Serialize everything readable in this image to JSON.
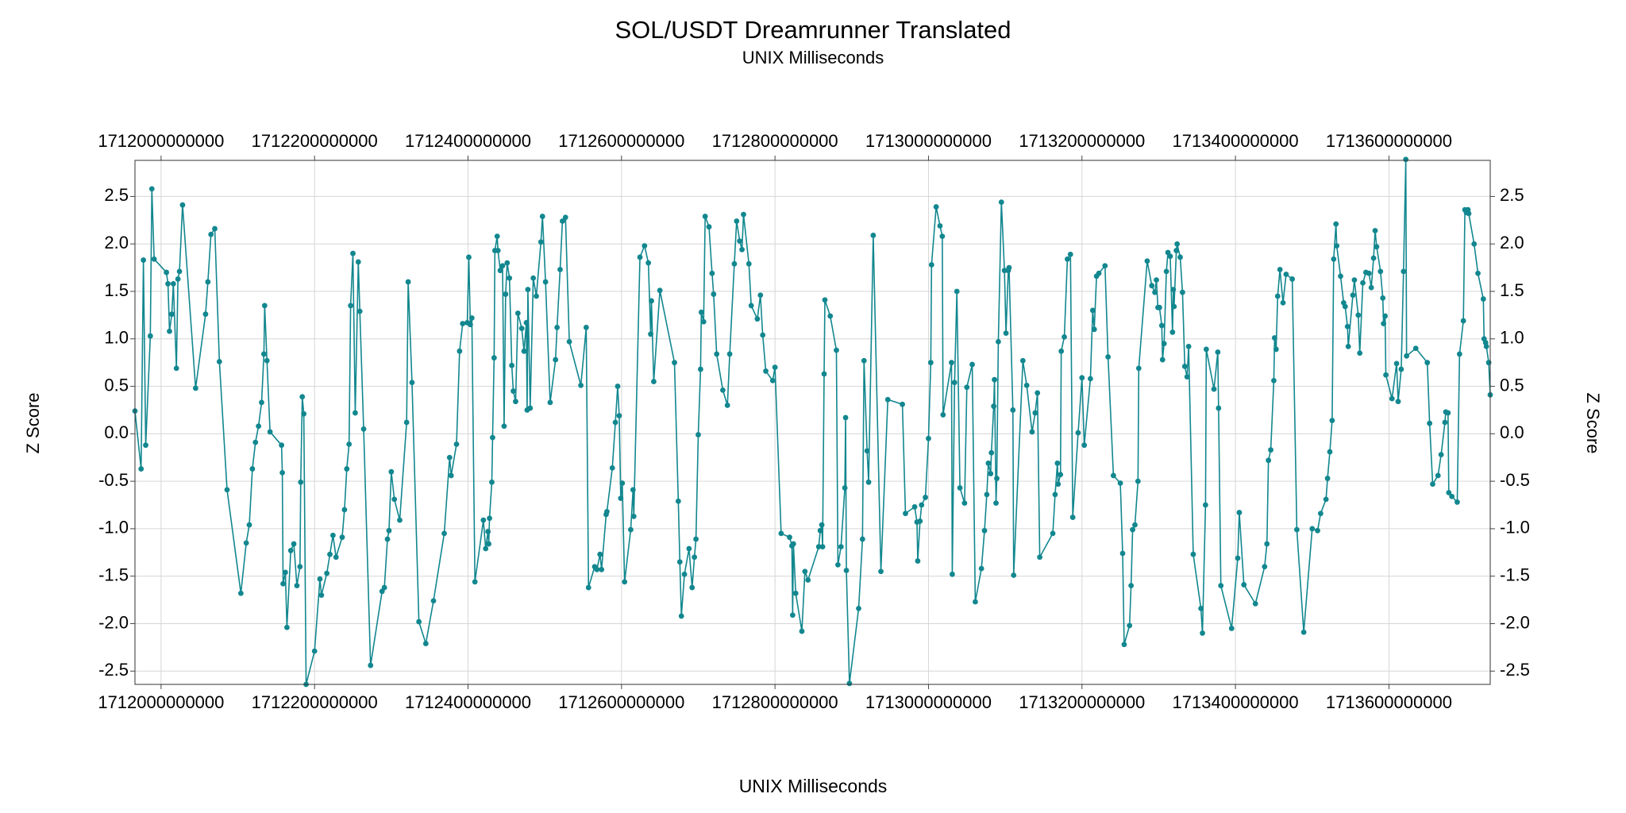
{
  "chart_data": {
    "type": "line",
    "title": "SOL/USDT Dreamrunner Translated",
    "subtitle": "UNIX Milliseconds",
    "xlabel": "UNIX Milliseconds",
    "ylabel": "Z Score",
    "color": "#12878f",
    "grid": true,
    "xlim": [
      1711966000000,
      1713732000000
    ],
    "ylim": [
      -2.64,
      2.88
    ],
    "xticks": [
      1712000000000,
      1712200000000,
      1712400000000,
      1712600000000,
      1712800000000,
      1713000000000,
      1713200000000,
      1713400000000,
      1713600000000
    ],
    "yticks": [
      -2.5,
      {
        "value": -2,
        "label": "-2.0"
      },
      -1.5,
      {
        "value": -1,
        "label": "-1.0"
      },
      -0.5,
      {
        "value": 0,
        "label": "0.0"
      },
      0.5,
      {
        "value": 1,
        "label": "1.0"
      },
      1.5,
      {
        "value": 2,
        "label": "2.0"
      },
      2.5
    ],
    "x": [
      1711966000000,
      1711974000000,
      1711977000000,
      1711980000000,
      1711986000000,
      1711988000000,
      1711991000000,
      1712007000000,
      1712009000000,
      1712011000000,
      1712014000000,
      1712016000000,
      1712020000000,
      1712022000000,
      1712024000000,
      1712028000000,
      1712045000000,
      1712058000000,
      1712061000000,
      1712065000000,
      1712070000000,
      1712076000000,
      1712086000000,
      1712104000000,
      1712111000000,
      1712115000000,
      1712119000000,
      1712123000000,
      1712127000000,
      1712131000000,
      1712134000000,
      1712135000000,
      1712138000000,
      1712142000000,
      1712157000000,
      1712158000000,
      1712159000000,
      1712162000000,
      1712164000000,
      1712169000000,
      1712173000000,
      1712177000000,
      1712181000000,
      1712182000000,
      1712184000000,
      1712186000000,
      1712189000000,
      1712200000000,
      1712207000000,
      1712209000000,
      1712216000000,
      1712220000000,
      1712224000000,
      1712228000000,
      1712236000000,
      1712239000000,
      1712242000000,
      1712245000000,
      1712247000000,
      1712250000000,
      1712253000000,
      1712257000000,
      1712259000000,
      1712264000000,
      1712273000000,
      1712288000000,
      1712291000000,
      1712295000000,
      1712297000000,
      1712300000000,
      1712304000000,
      1712311000000,
      1712320000000,
      1712322000000,
      1712327000000,
      1712336000000,
      1712345000000,
      1712355000000,
      1712369000000,
      1712376000000,
      1712378000000,
      1712385000000,
      1712389000000,
      1712393000000,
      1712399000000,
      1712401000000,
      1712403000000,
      1712405000000,
      1712409000000,
      1712420000000,
      1712423000000,
      1712426000000,
      1712427000000,
      1712428000000,
      1712431000000,
      1712432000000,
      1712434000000,
      1712435000000,
      1712438000000,
      1712439000000,
      1712442000000,
      1712445000000,
      1712447000000,
      1712449000000,
      1712451000000,
      1712454000000,
      1712457000000,
      1712459000000,
      1712462000000,
      1712465000000,
      1712470000000,
      1712473000000,
      1712476000000,
      1712477000000,
      1712478000000,
      1712481000000,
      1712485000000,
      1712489000000,
      1712495000000,
      1712497000000,
      1712501000000,
      1712507000000,
      1712514000000,
      1712516000000,
      1712520000000,
      1712523000000,
      1712527000000,
      1712532000000,
      1712547000000,
      1712554000000,
      1712557000000,
      1712565000000,
      1712568000000,
      1712572000000,
      1712574000000,
      1712580000000,
      1712581000000,
      1712588000000,
      1712592000000,
      1712595000000,
      1712597000000,
      1712599000000,
      1712601000000,
      1712604000000,
      1712612000000,
      1712615000000,
      1712616000000,
      1712624000000,
      1712630000000,
      1712635000000,
      1712638000000,
      1712639000000,
      1712642000000,
      1712650000000,
      1712669000000,
      1712674000000,
      1712676000000,
      1712678000000,
      1712682000000,
      1712688000000,
      1712692000000,
      1712695000000,
      1712697000000,
      1712700000000,
      1712703000000,
      1712704000000,
      1712707000000,
      1712709000000,
      1712714000000,
      1712718000000,
      1712720000000,
      1712724000000,
      1712732000000,
      1712738000000,
      1712741000000,
      1712747000000,
      1712750000000,
      1712754000000,
      1712757000000,
      1712759000000,
      1712766000000,
      1712769000000,
      1712777000000,
      1712781000000,
      1712784000000,
      1712788000000,
      1712797000000,
      1712800000000,
      1712808000000,
      1712819000000,
      1712822000000,
      1712823000000,
      1712824000000,
      1712827000000,
      1712835000000,
      1712839000000,
      1712843000000,
      1712857000000,
      1712859000000,
      1712861000000,
      1712862000000,
      1712864000000,
      1712865000000,
      1712872000000,
      1712880000000,
      1712882000000,
      1712886000000,
      1712891000000,
      1712892000000,
      1712893000000,
      1712897000000,
      1712909000000,
      1712914000000,
      1712916000000,
      1712920000000,
      1712922000000,
      1712928000000,
      1712938000000,
      1712947000000,
      1712966000000,
      1712970000000,
      1712982000000,
      1712985000000,
      1712986000000,
      1712989000000,
      1712991000000,
      1712996000000,
      1713000000000,
      1713003000000,
      1713004000000,
      1713010000000,
      1713015000000,
      1713018000000,
      1713019000000,
      1713030000000,
      1713031000000,
      1713034000000,
      1713037000000,
      1713041000000,
      1713047000000,
      1713050000000,
      1713057000000,
      1713061000000,
      1713069000000,
      1713073000000,
      1713076000000,
      1713078000000,
      1713081000000,
      1713082000000,
      1713085000000,
      1713086000000,
      1713088000000,
      1713089000000,
      1713091000000,
      1713095000000,
      1713099000000,
      1713101000000,
      1713104000000,
      1713105000000,
      1713110000000,
      1713111000000,
      1713123000000,
      1713128000000,
      1713135000000,
      1713139000000,
      1713142000000,
      1713145000000,
      1713162000000,
      1713165000000,
      1713168000000,
      1713169000000,
      1713172000000,
      1713173000000,
      1713177000000,
      1713181000000,
      1713185000000,
      1713188000000,
      1713195000000,
      1713200000000,
      1713203000000,
      1713211000000,
      1713214000000,
      1713216000000,
      1713219000000,
      1713222000000,
      1713230000000,
      1713234000000,
      1713241000000,
      1713250000000,
      1713253000000,
      1713255000000,
      1713262000000,
      1713264000000,
      1713266000000,
      1713269000000,
      1713273000000,
      1713274000000,
      1713285000000,
      1713291000000,
      1713295000000,
      1713297000000,
      1713299000000,
      1713301000000,
      1713304000000,
      1713305000000,
      1713307000000,
      1713310000000,
      1713312000000,
      1713315000000,
      1713318000000,
      1713319000000,
      1713320000000,
      1713323000000,
      1713324000000,
      1713328000000,
      1713331000000,
      1713334000000,
      1713337000000,
      1713339000000,
      1713345000000,
      1713355000000,
      1713357000000,
      1713361000000,
      1713362000000,
      1713372000000,
      1713377000000,
      1713378000000,
      1713381000000,
      1713395000000,
      1713403000000,
      1713405000000,
      1713411000000,
      1713426000000,
      1713438000000,
      1713441000000,
      1713443000000,
      1713446000000,
      1713450000000,
      1713451000000,
      1713453000000,
      1713455000000,
      1713458000000,
      1713462000000,
      1713466000000,
      1713474000000,
      1713480000000,
      1713489000000,
      1713500000000,
      1713507000000,
      1713511000000,
      1713518000000,
      1713520000000,
      1713523000000,
      1713526000000,
      1713528000000,
      1713531000000,
      1713532000000,
      1713537000000,
      1713541000000,
      1713543000000,
      1713546000000,
      1713547000000,
      1713553000000,
      1713555000000,
      1713560000000,
      1713562000000,
      1713566000000,
      1713570000000,
      1713574000000,
      1713577000000,
      1713580000000,
      1713582000000,
      1713584000000,
      1713589000000,
      1713592000000,
      1713593000000,
      1713595000000,
      1713596000000,
      1713604000000,
      1713610000000,
      1713612000000,
      1713616000000,
      1713619000000,
      1713622000000,
      1713623000000,
      1713635000000,
      1713650000000,
      1713653000000,
      1713657000000,
      1713664000000,
      1713668000000,
      1713673000000,
      1713674000000,
      1713677000000,
      1713678000000,
      1713682000000,
      1713689000000,
      1713692000000,
      1713697000000,
      1713699000000,
      1713701000000,
      1713703000000,
      1713704000000,
      1713711000000,
      1713716000000,
      1713723000000,
      1713724000000,
      1713726000000,
      1713727000000,
      1713730000000,
      1713732000000
    ],
    "values": [
      0.24,
      -0.37,
      1.83,
      -0.12,
      1.03,
      2.58,
      1.84,
      1.7,
      1.58,
      1.08,
      1.26,
      1.58,
      0.69,
      1.63,
      1.71,
      2.41,
      0.48,
      1.26,
      1.6,
      2.1,
      2.16,
      0.76,
      -0.59,
      -1.68,
      -1.15,
      -0.96,
      -0.37,
      -0.09,
      0.08,
      0.33,
      0.84,
      1.35,
      0.77,
      0.02,
      -0.12,
      -0.41,
      -1.58,
      -1.46,
      -2.04,
      -1.23,
      -1.16,
      -1.6,
      -1.4,
      -0.51,
      0.39,
      0.21,
      -2.64,
      -2.29,
      -1.53,
      -1.7,
      -1.47,
      -1.27,
      -1.07,
      -1.3,
      -1.09,
      -0.8,
      -0.37,
      -0.11,
      1.35,
      1.9,
      0.22,
      1.81,
      1.29,
      0.05,
      -2.44,
      -1.66,
      -1.62,
      -1.11,
      -1.02,
      -0.4,
      -0.69,
      -0.91,
      0.12,
      1.6,
      0.54,
      -1.98,
      -2.21,
      -1.76,
      -1.05,
      -0.25,
      -0.44,
      -0.11,
      0.87,
      1.16,
      1.17,
      1.86,
      1.15,
      1.22,
      -1.56,
      -0.91,
      -1.21,
      -1.03,
      -1.16,
      -0.89,
      -0.51,
      -0.04,
      0.8,
      1.93,
      2.08,
      1.93,
      1.72,
      1.77,
      0.08,
      1.47,
      1.8,
      1.64,
      0.72,
      0.45,
      0.34,
      1.27,
      1.11,
      0.87,
      1.17,
      0.25,
      1.52,
      0.27,
      1.64,
      1.45,
      2.02,
      2.29,
      1.6,
      0.33,
      0.78,
      1.12,
      1.73,
      2.24,
      2.28,
      0.97,
      0.51,
      1.12,
      -1.62,
      -1.4,
      -1.43,
      -1.27,
      -1.43,
      -0.85,
      -0.82,
      -0.36,
      0.12,
      0.5,
      0.19,
      -0.68,
      -0.52,
      -1.56,
      -1.01,
      -0.59,
      -0.87,
      1.86,
      1.98,
      1.8,
      1.05,
      1.4,
      0.55,
      1.51,
      0.75,
      -0.71,
      -1.35,
      -1.92,
      -1.48,
      -1.21,
      -1.62,
      -1.3,
      -1.11,
      -0.01,
      0.68,
      1.28,
      1.18,
      2.29,
      2.18,
      1.69,
      1.47,
      0.84,
      0.46,
      0.3,
      0.84,
      1.79,
      2.24,
      2.03,
      1.94,
      2.31,
      1.79,
      1.35,
      1.21,
      1.46,
      1.04,
      0.66,
      0.56,
      0.7,
      -1.05,
      -1.09,
      -1.18,
      -1.91,
      -1.16,
      -1.68,
      -2.08,
      -1.45,
      -1.54,
      -1.19,
      -1.02,
      -0.96,
      -1.19,
      0.63,
      1.41,
      1.24,
      0.88,
      -1.38,
      -1.19,
      -0.57,
      0.17,
      -1.44,
      -2.63,
      -1.84,
      -1.11,
      0.77,
      -0.18,
      -0.51,
      2.09,
      -1.45,
      0.36,
      0.31,
      -0.84,
      -0.77,
      -0.93,
      -1.34,
      -0.92,
      -0.75,
      -0.67,
      -0.05,
      0.75,
      1.78,
      2.39,
      2.19,
      2.08,
      0.2,
      0.75,
      -1.48,
      0.54,
      1.5,
      -0.57,
      -0.73,
      0.49,
      0.73,
      -1.77,
      -1.42,
      -1.02,
      -0.64,
      -0.31,
      -0.42,
      -0.2,
      0.29,
      0.57,
      -0.73,
      -0.47,
      0.97,
      2.44,
      1.72,
      1.06,
      1.72,
      1.75,
      0.25,
      -1.49,
      0.77,
      0.51,
      0.02,
      0.22,
      0.43,
      -1.3,
      -1.05,
      -0.64,
      -0.31,
      -0.53,
      -0.43,
      0.87,
      1.02,
      1.84,
      1.89,
      -0.88,
      0.01,
      0.59,
      -0.12,
      0.58,
      1.3,
      1.1,
      1.66,
      1.69,
      1.77,
      0.81,
      -0.44,
      -0.52,
      -1.26,
      -2.22,
      -2.02,
      -1.6,
      -1.01,
      -0.96,
      -0.5,
      0.69,
      1.82,
      1.56,
      1.49,
      1.62,
      1.33,
      1.33,
      1.14,
      0.78,
      0.95,
      1.71,
      1.91,
      1.87,
      1.07,
      1.52,
      1.34,
      1.93,
      2.0,
      1.86,
      1.49,
      0.71,
      0.6,
      0.92,
      -1.27,
      -1.84,
      -2.1,
      -0.75,
      0.89,
      0.47,
      0.86,
      0.27,
      -1.6,
      -2.05,
      -1.31,
      -0.83,
      -1.59,
      -1.79,
      -1.4,
      -1.16,
      -0.28,
      -0.17,
      0.56,
      1.01,
      0.89,
      1.45,
      1.73,
      1.38,
      1.68,
      1.63,
      -1.01,
      -2.09,
      -1.0,
      -1.02,
      -0.84,
      -0.69,
      -0.47,
      -0.19,
      0.14,
      1.84,
      2.21,
      1.98,
      1.66,
      1.38,
      1.34,
      1.13,
      0.92,
      1.46,
      1.62,
      1.25,
      0.85,
      1.59,
      1.7,
      1.69,
      1.54,
      1.85,
      2.14,
      1.97,
      1.71,
      1.43,
      1.16,
      1.24,
      0.62,
      0.37,
      0.74,
      0.34,
      0.68,
      1.71,
      2.89,
      0.82,
      0.9,
      0.75,
      0.11,
      -0.53,
      -0.44,
      -0.22,
      0.12,
      0.23,
      0.22,
      -0.62,
      -0.66,
      -0.72,
      0.84,
      1.19,
      2.36,
      2.33,
      2.36,
      2.32,
      2.0,
      1.69,
      1.42,
      1.0,
      0.96,
      0.92,
      0.75,
      0.41
    ]
  }
}
